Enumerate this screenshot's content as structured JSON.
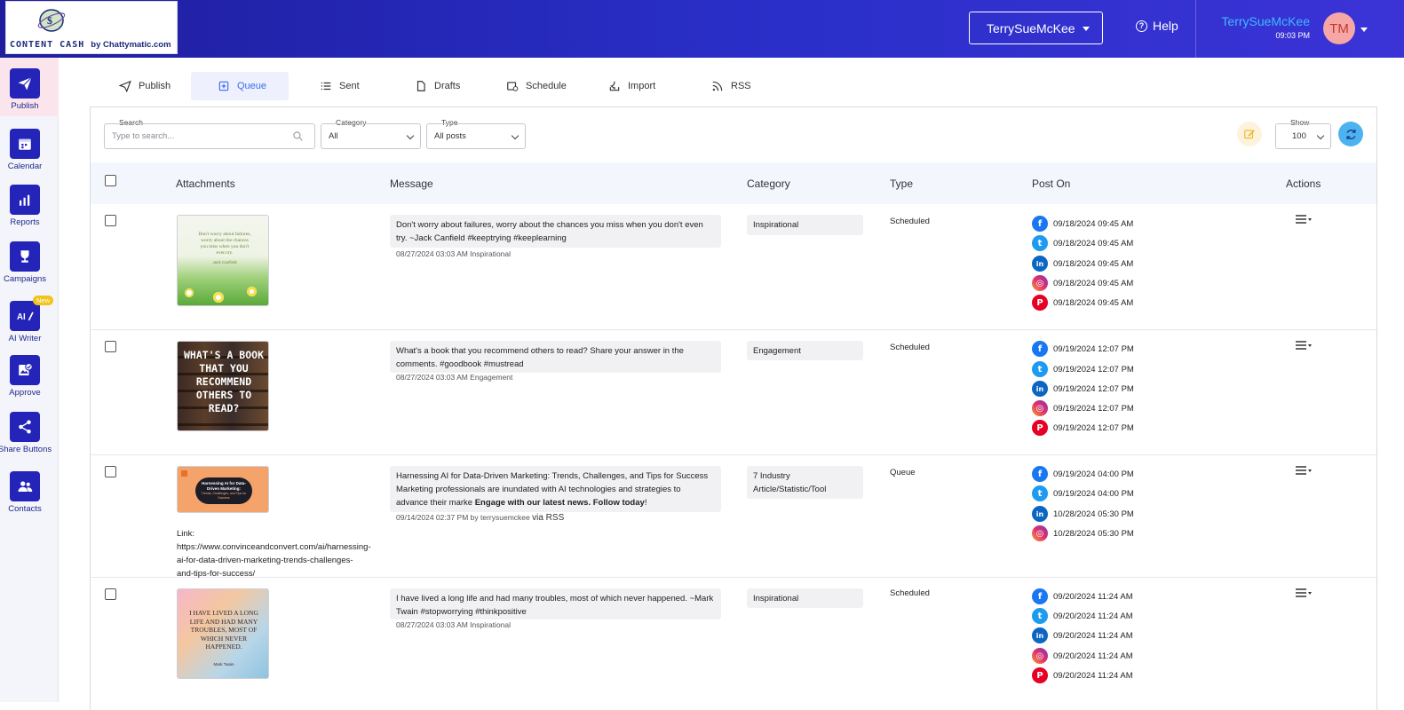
{
  "header": {
    "logo_text": "CONTENT CASH",
    "logo_sub": "by Chattymatic.com",
    "account_selected": "TerrySueMcKee",
    "help_label": "Help",
    "user_name": "TerrySueMcKee",
    "user_time": "09:03 PM",
    "avatar_initials": "TM",
    "colors": {
      "header_bg": "#2a2fc9",
      "accent": "#3fb8ff"
    }
  },
  "sidebar": {
    "items": [
      {
        "label": "Publish",
        "icon": "paper-plane-icon"
      },
      {
        "label": "Calendar",
        "icon": "calendar-icon"
      },
      {
        "label": "Reports",
        "icon": "bar-chart-icon"
      },
      {
        "label": "Campaigns",
        "icon": "trophy-icon"
      },
      {
        "label": "AI Writer",
        "icon": "ai-writer-icon",
        "badge": "New"
      },
      {
        "label": "Approve",
        "icon": "approve-icon"
      },
      {
        "label": "Share Buttons",
        "icon": "share-icon"
      },
      {
        "label": "Contacts",
        "icon": "contacts-icon"
      }
    ]
  },
  "tabs": [
    {
      "label": "Publish",
      "icon": "paper-plane-icon"
    },
    {
      "label": "Queue",
      "icon": "queue-add-icon",
      "active": true
    },
    {
      "label": "Sent",
      "icon": "list-icon"
    },
    {
      "label": "Drafts",
      "icon": "document-icon"
    },
    {
      "label": "Schedule",
      "icon": "calendar-clock-icon"
    },
    {
      "label": "Import",
      "icon": "import-icon"
    },
    {
      "label": "RSS",
      "icon": "rss-icon"
    }
  ],
  "filters": {
    "search_label": "Search",
    "search_placeholder": "Type to search...",
    "category_label": "Category",
    "category_value": "All",
    "type_label": "Type",
    "type_value": "All posts",
    "show_label": "Show",
    "show_value": "100"
  },
  "table": {
    "columns": [
      "Attachments",
      "Message",
      "Category",
      "Type",
      "Post On",
      "Actions"
    ],
    "rows": [
      {
        "thumb_text": "Don't worry about failures, worry about the chances you miss when you don't even try.",
        "thumb_author": "Jack Canfield",
        "message": "Don't worry about failures, worry about the chances you miss when you don't even try. ~Jack Canfield #keeptrying #keeplearning",
        "meta": "08/27/2024 03:03 AM Inspirational",
        "category": "Inspirational",
        "type": "Scheduled",
        "posts": [
          {
            "network": "facebook",
            "date": "09/18/2024 09:45 AM"
          },
          {
            "network": "twitter",
            "date": "09/18/2024 09:45 AM"
          },
          {
            "network": "linkedin",
            "date": "09/18/2024 09:45 AM"
          },
          {
            "network": "instagram",
            "date": "09/18/2024 09:45 AM"
          },
          {
            "network": "pinterest",
            "date": "09/18/2024 09:45 AM"
          }
        ]
      },
      {
        "thumb_text": "WHAT'S A BOOK THAT YOU RECOMMEND OTHERS TO READ?",
        "message": "What's a book that you recommend others to read? Share your answer in the comments. #goodbook #mustread",
        "meta": "08/27/2024 03:03 AM Engagement",
        "category": "Engagement",
        "type": "Scheduled",
        "posts": [
          {
            "network": "facebook",
            "date": "09/19/2024 12:07 PM"
          },
          {
            "network": "twitter",
            "date": "09/19/2024 12:07 PM"
          },
          {
            "network": "linkedin",
            "date": "09/19/2024 12:07 PM"
          },
          {
            "network": "instagram",
            "date": "09/19/2024 12:07 PM"
          },
          {
            "network": "pinterest",
            "date": "09/19/2024 12:07 PM"
          }
        ]
      },
      {
        "thumb_text": "Harnessing AI for Data-Driven Marketing:",
        "thumb_sub": "Trends, Challenges, and Tips for Success",
        "message_plain": "Harnessing AI for Data-Driven Marketing: Trends, Challenges, and Tips for Success Marketing professionals are inundated with AI technologies and strategies to advance their marke ",
        "message_bold_1": "Engage with our latest news",
        "message_sep": ". ",
        "message_bold_2": "Follow today",
        "message_end": "!",
        "meta": "09/14/2024 02:37 PM by terrysuemckee",
        "meta_via": "via RSS",
        "link": "Link: https://www.convinceandconvert.com/ai/harnessing-ai-for-data-driven-marketing-trends-challenges-and-tips-for-success/",
        "category": "7 Industry Article/Statistic/Tool",
        "type": "Queue",
        "posts": [
          {
            "network": "facebook",
            "date": "09/19/2024 04:00 PM"
          },
          {
            "network": "twitter",
            "date": "09/19/2024 04:00 PM"
          },
          {
            "network": "linkedin",
            "date": "10/28/2024 05:30 PM"
          },
          {
            "network": "instagram",
            "date": "10/28/2024 05:30 PM"
          }
        ]
      },
      {
        "thumb_text": "I HAVE LIVED A LONG LIFE AND HAD MANY TROUBLES, MOST OF WHICH NEVER HAPPENED.",
        "thumb_author": "Mark Twain",
        "message": "I have lived a long life and had many troubles, most of which never happened. ~Mark Twain #stopworrying #thinkpositive",
        "meta": "08/27/2024 03:03 AM Inspirational",
        "category": "Inspirational",
        "type": "Scheduled",
        "posts": [
          {
            "network": "facebook",
            "date": "09/20/2024 11:24 AM"
          },
          {
            "network": "twitter",
            "date": "09/20/2024 11:24 AM"
          },
          {
            "network": "linkedin",
            "date": "09/20/2024 11:24 AM"
          },
          {
            "network": "instagram",
            "date": "09/20/2024 11:24 AM"
          },
          {
            "network": "pinterest",
            "date": "09/20/2024 11:24 AM"
          }
        ]
      }
    ]
  }
}
